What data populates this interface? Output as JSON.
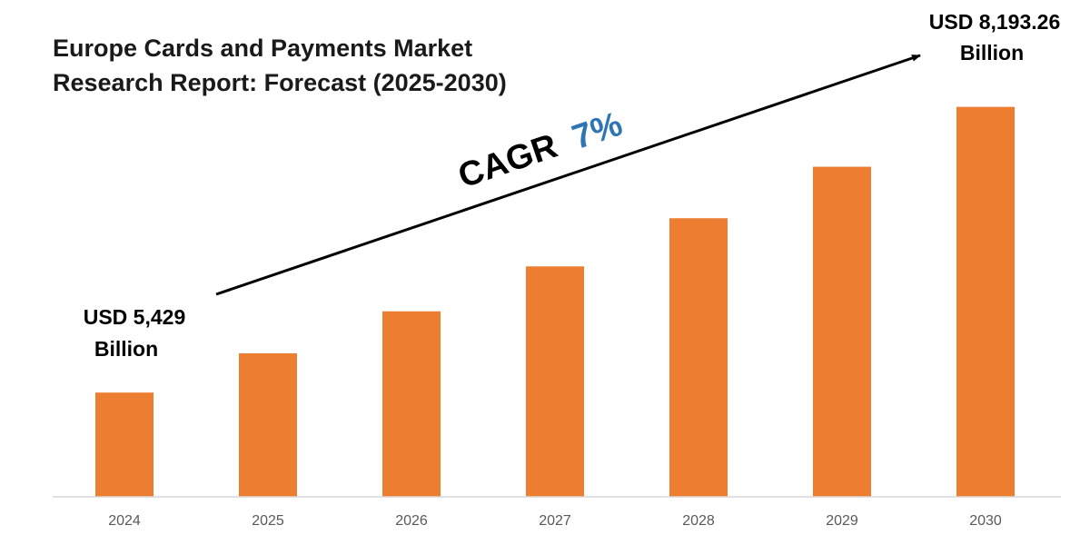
{
  "chart_data": {
    "type": "bar",
    "title_lines": [
      "Europe Cards and Payments Market",
      "Research Report: Forecast (2025-2030)"
    ],
    "categories": [
      "2024",
      "2025",
      "2026",
      "2027",
      "2028",
      "2029",
      "2030"
    ],
    "values": [
      5429,
      5809,
      6215,
      6650,
      7116,
      7614,
      8193.26
    ],
    "ylim": [
      4420,
      8700
    ],
    "grid": false,
    "bar_color": "#ed7d31",
    "axis_color": "#d9d9d9",
    "start_label": [
      "USD 5,429",
      "Billion"
    ],
    "end_label": [
      "USD 8,193.26",
      "Billion"
    ],
    "cagr": {
      "label": "CAGR",
      "value": "7%",
      "value_color": "#2e75b6"
    }
  }
}
